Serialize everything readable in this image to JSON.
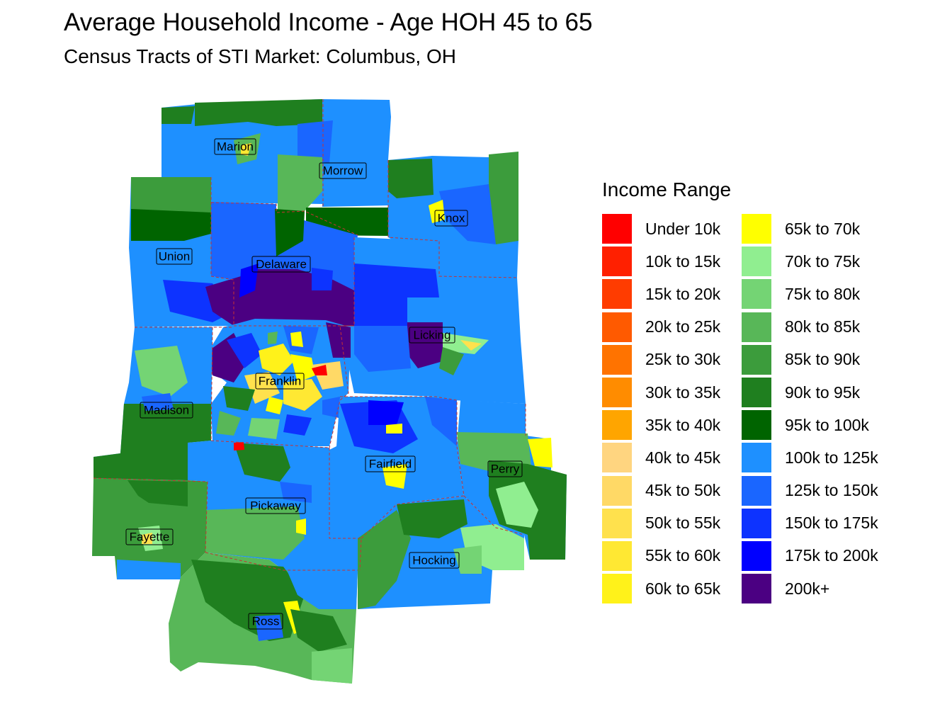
{
  "header": {
    "title": "Average Household Income - Age HOH 45 to 65",
    "subtitle": "Census Tracts of STI Market: Columbus, OH"
  },
  "legend": {
    "title": "Income Range",
    "items": [
      {
        "label": "Under 10k",
        "color": "#ff0000"
      },
      {
        "label": "10k to 15k",
        "color": "#ff2000"
      },
      {
        "label": "15k to 20k",
        "color": "#ff3c00"
      },
      {
        "label": "20k to 25k",
        "color": "#ff5a00"
      },
      {
        "label": "25k to 30k",
        "color": "#ff7300"
      },
      {
        "label": "30k to 35k",
        "color": "#ff8c00"
      },
      {
        "label": "35k to 40k",
        "color": "#ffa500"
      },
      {
        "label": "40k to 45k",
        "color": "#ffd580"
      },
      {
        "label": "45k to 50k",
        "color": "#ffd966"
      },
      {
        "label": "50k to 55k",
        "color": "#ffe14d"
      },
      {
        "label": "55k to 60k",
        "color": "#ffe833"
      },
      {
        "label": "60k to 65k",
        "color": "#fff21a"
      },
      {
        "label": "65k to 70k",
        "color": "#ffff00"
      },
      {
        "label": "70k to 75k",
        "color": "#90ee90"
      },
      {
        "label": "75k to 80k",
        "color": "#74d474"
      },
      {
        "label": "80k to 85k",
        "color": "#58b758"
      },
      {
        "label": "85k to 90k",
        "color": "#3c9c3c"
      },
      {
        "label": "90k to 95k",
        "color": "#1f7f1f"
      },
      {
        "label": "95k to 100k",
        "color": "#006400"
      },
      {
        "label": "100k to 125k",
        "color": "#1e90ff"
      },
      {
        "label": "125k to 150k",
        "color": "#1a66ff"
      },
      {
        "label": "150k to 175k",
        "color": "#0d33ff"
      },
      {
        "label": "175k to 200k",
        "color": "#0000ff"
      },
      {
        "label": "200k+",
        "color": "#4b0082"
      }
    ]
  },
  "map": {
    "county_labels": {
      "marion": "Marion",
      "morrow": "Morrow",
      "knox": "Knox",
      "union": "Union",
      "delaware": "Delaware",
      "licking": "Licking",
      "franklin": "Franklin",
      "madison": "Madison",
      "fairfield": "Fairfield",
      "perry": "Perry",
      "pickaway": "Pickaway",
      "fayette": "Fayette",
      "hocking": "Hocking",
      "ross": "Ross"
    }
  }
}
